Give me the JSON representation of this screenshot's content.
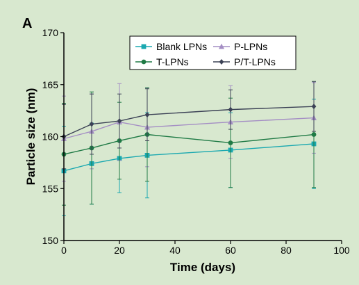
{
  "chart_data": {
    "type": "line",
    "panel_label": "A",
    "xlabel": "Time (days)",
    "ylabel": "Particle size (nm)",
    "xlim": [
      0,
      100
    ],
    "ylim": [
      150,
      170
    ],
    "xticks": [
      0,
      20,
      40,
      60,
      80,
      100
    ],
    "yticks": [
      150,
      155,
      160,
      165,
      170
    ],
    "x": [
      0,
      10,
      20,
      30,
      60,
      90
    ],
    "legend_placement": "top-right",
    "grid": false,
    "series": [
      {
        "name": "Blank LPNs",
        "color": "#1aa8b0",
        "marker": "square",
        "values": [
          156.7,
          157.4,
          157.9,
          158.2,
          158.7,
          159.3
        ],
        "errors": [
          4.3,
          3.9,
          3.3,
          4.1,
          3.6,
          4.3
        ]
      },
      {
        "name": "P-LPNs",
        "color": "#a48ec4",
        "marker": "triangle",
        "values": [
          159.8,
          160.5,
          161.4,
          160.9,
          161.4,
          161.8
        ],
        "errors": [
          4.1,
          3.6,
          3.7,
          3.8,
          3.5,
          3.4
        ]
      },
      {
        "name": "T-LPNs",
        "color": "#1f7a45",
        "marker": "circle",
        "values": [
          158.3,
          158.9,
          159.6,
          160.2,
          159.4,
          160.2
        ],
        "errors": [
          4.9,
          5.4,
          3.7,
          4.5,
          4.3,
          5.1
        ]
      },
      {
        "name": "P/T-LPNs",
        "color": "#3c4256",
        "marker": "diamond",
        "values": [
          160.0,
          161.2,
          161.5,
          162.1,
          162.6,
          162.9
        ],
        "errors": [
          3.1,
          2.9,
          2.6,
          2.5,
          1.9,
          2.4
        ]
      }
    ]
  }
}
